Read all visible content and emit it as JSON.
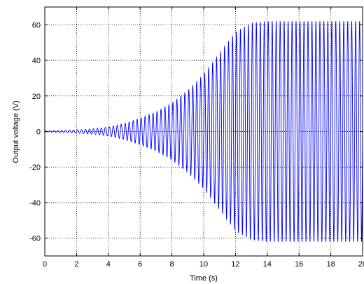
{
  "chart_data": {
    "type": "line",
    "title": "",
    "xlabel": "Time (s)",
    "ylabel": "Output voltage (V)",
    "xlim": [
      0,
      20
    ],
    "ylim": [
      -70,
      70
    ],
    "grid": true,
    "xticks": [
      0,
      2,
      4,
      6,
      8,
      10,
      12,
      14,
      16,
      18,
      20
    ],
    "yticks": [
      -60,
      -40,
      -20,
      0,
      20,
      40,
      60
    ],
    "xtick_labels": [
      "0",
      "2",
      "4",
      "6",
      "8",
      "10",
      "12",
      "14",
      "16",
      "18",
      "20"
    ],
    "ytick_labels": [
      "-60",
      "-40",
      "-20",
      "0",
      "20",
      "40",
      "60"
    ],
    "series": [
      {
        "color": "#0000ff",
        "oscillation_frequency_hz": 4,
        "envelope": {
          "t": [
            0,
            1,
            2,
            3,
            4,
            5,
            6,
            7,
            8,
            9,
            10,
            11,
            12,
            13,
            14,
            16,
            18,
            20
          ],
          "amplitude": [
            0.3,
            0.5,
            0.9,
            1.5,
            2.5,
            4.5,
            7.5,
            11,
            16,
            23,
            32,
            44,
            56,
            61,
            62,
            62,
            62,
            62
          ]
        }
      }
    ]
  }
}
